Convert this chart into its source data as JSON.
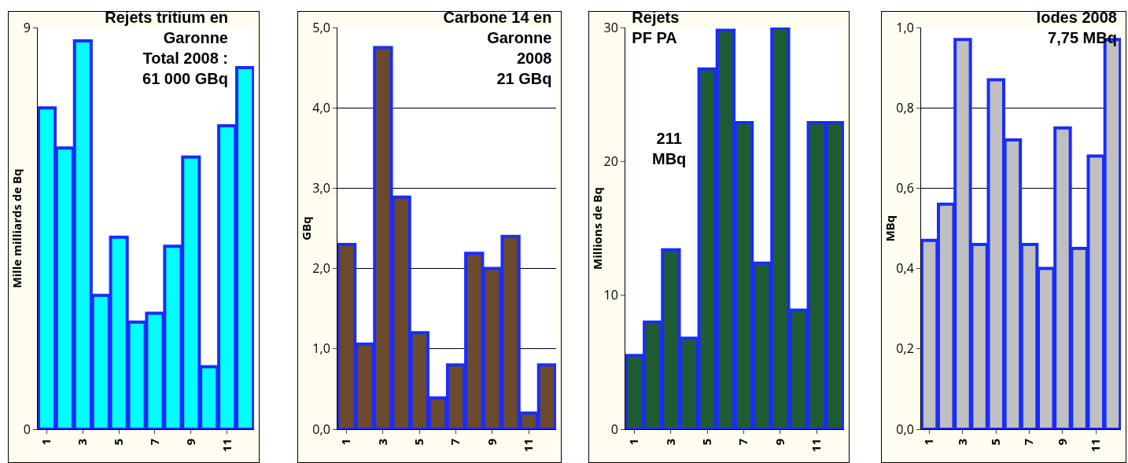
{
  "chart_data": [
    {
      "type": "bar",
      "title": "Rejets tritium en\nGaronne\nTotal 2008 :\n61 000 GBq",
      "ylabel": "Mille milliards de Bq",
      "categories": [
        "1",
        null,
        "3",
        null,
        "5",
        null,
        "7",
        null,
        "9",
        null,
        "11",
        null
      ],
      "values": [
        7.2,
        6.3,
        8.7,
        3.0,
        4.3,
        2.4,
        2.6,
        4.1,
        6.1,
        1.4,
        6.8,
        8.1
      ],
      "color": "#00ffff",
      "ylim": [
        0,
        9
      ],
      "yticks": [
        0,
        9
      ],
      "grid": false
    },
    {
      "type": "bar",
      "title": "Carbone 14 en\nGaronne\n2008\n21 GBq",
      "ylabel": "GBq",
      "categories": [
        "1",
        null,
        "3",
        null,
        "5",
        null,
        "7",
        null,
        "9",
        null,
        "11",
        null
      ],
      "values": [
        2.3,
        1.06,
        4.75,
        2.89,
        1.2,
        0.39,
        0.8,
        2.19,
        2.0,
        2.4,
        0.2,
        0.8
      ],
      "color": "#6b4a2e",
      "ylim": [
        0,
        5
      ],
      "yticks": [
        {
          "value": 0,
          "label": "0,0"
        },
        {
          "value": 1,
          "label": "1,0"
        },
        {
          "value": 2,
          "label": "2,0"
        },
        {
          "value": 3,
          "label": "3,0"
        },
        {
          "value": 4,
          "label": "4,0"
        },
        {
          "value": 5,
          "label": "5,0"
        }
      ],
      "grid": "y"
    },
    {
      "type": "bar",
      "title": "Rejets\nPF PA",
      "annotations": [
        "211\nMBq"
      ],
      "ylabel": "Millions de Bq",
      "categories": [
        "1",
        null,
        "3",
        null,
        "5",
        null,
        "7",
        null,
        "9",
        null,
        "11",
        null
      ],
      "values": [
        5.5,
        8.0,
        13.4,
        6.8,
        26.9,
        29.8,
        22.9,
        12.4,
        30,
        8.9,
        22.9,
        22.9
      ],
      "color": "#1e5c34",
      "ylim": [
        0,
        30
      ],
      "yticks": [
        0,
        10,
        20,
        30
      ],
      "grid": false
    },
    {
      "type": "bar",
      "title": "Iodes 2008\n7,75 MBq",
      "ylabel": "MBq",
      "categories": [
        "1",
        null,
        "3",
        null,
        "5",
        null,
        "7",
        null,
        "9",
        null,
        "11",
        null
      ],
      "values": [
        0.47,
        0.56,
        0.97,
        0.46,
        0.87,
        0.72,
        0.46,
        0.4,
        0.75,
        0.45,
        0.68,
        0.97
      ],
      "color": "#c0c0c0",
      "ylim": [
        0,
        1
      ],
      "yticks": [
        {
          "value": 0,
          "label": "0,0"
        },
        {
          "value": 0.2,
          "label": "0,2"
        },
        {
          "value": 0.4,
          "label": "0,4"
        },
        {
          "value": 0.6,
          "label": "0,6"
        },
        {
          "value": 0.8,
          "label": "0,8"
        },
        {
          "value": 1,
          "label": "1,0"
        }
      ],
      "grid": "y"
    }
  ]
}
